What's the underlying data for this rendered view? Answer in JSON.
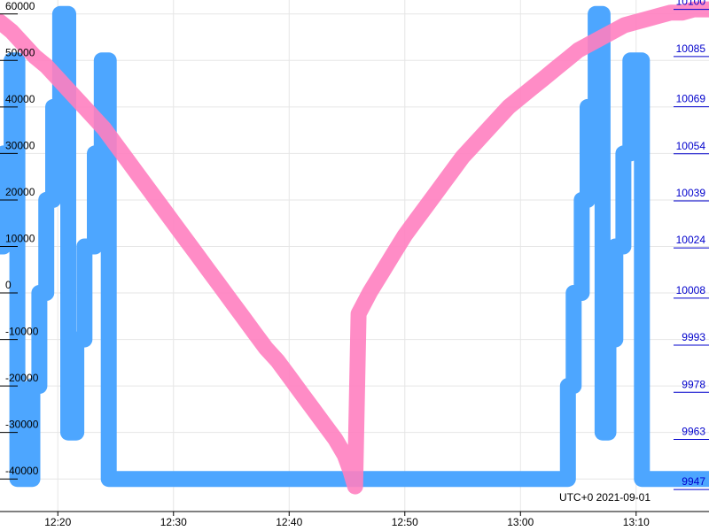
{
  "chart_data": {
    "type": "line",
    "caption": "UTC+0 2021-09-01",
    "x_axis": {
      "ticks": [
        "12:20",
        "12:30",
        "12:40",
        "12:50",
        "13:00",
        "13:10"
      ],
      "tick_minutes": [
        20,
        30,
        40,
        50,
        60,
        70
      ],
      "range_minutes": [
        15.0,
        76.3
      ]
    },
    "y_left": {
      "ticks": [
        "60000",
        "50000",
        "40000",
        "30000",
        "20000",
        "10000",
        "0",
        "-10000",
        "-20000",
        "-30000",
        "-40000"
      ],
      "tick_values": [
        60000,
        50000,
        40000,
        30000,
        20000,
        10000,
        0,
        -10000,
        -20000,
        -30000,
        -40000
      ],
      "range": [
        -47000,
        63000
      ]
    },
    "y_right": {
      "ticks": [
        "10100",
        "10085",
        "10069",
        "10054",
        "10039",
        "10024",
        "10008",
        "9993",
        "9978",
        "9963",
        "9947"
      ],
      "tick_values": [
        10100,
        10085,
        10069,
        10054,
        10039,
        10024,
        10008,
        9993,
        9978,
        9963,
        9947
      ],
      "range": [
        9940,
        10103
      ]
    },
    "grid": true,
    "series": [
      {
        "axis": "left",
        "color": "#4da6ff",
        "step": true,
        "x": [
          15.0,
          15.3,
          16.0,
          16.5,
          17.8,
          18.4,
          19.0,
          19.6,
          20.2,
          20.9,
          21.6,
          22.3,
          23.2,
          23.8,
          24.4,
          25.3,
          26.0,
          26.5,
          27.8,
          28.3,
          30.0,
          40.0,
          50.0,
          60.0,
          64.1,
          64.6,
          65.3,
          65.8,
          66.5,
          67.1,
          67.6,
          68.2,
          68.9,
          69.5,
          70.5,
          71.5,
          72.1,
          72.6,
          73.8,
          74.4,
          75.0,
          75.6,
          76.3
        ],
        "y": [
          10000,
          30000,
          50000,
          -40000,
          -20000,
          0,
          20000,
          40000,
          60000,
          -30000,
          -10000,
          10000,
          30000,
          50000,
          -40000,
          -40000,
          -40000,
          -40000,
          -40000,
          -40000,
          -40000,
          -40000,
          -40000,
          -40000,
          -20000,
          0,
          20000,
          40000,
          60000,
          -30000,
          -10000,
          10000,
          30000,
          50000,
          -40000,
          -40000,
          -40000,
          -40000,
          -40000,
          -40000,
          -40000,
          -40000,
          -40000
        ]
      },
      {
        "axis": "right",
        "color": "#ff7fc0",
        "step": false,
        "x": [
          15.0,
          16.0,
          17.0,
          18.0,
          19.0,
          20.0,
          21.0,
          22.0,
          23.0,
          24.0,
          25.0,
          26.0,
          27.0,
          28.0,
          29.0,
          30.0,
          31.0,
          32.0,
          33.0,
          34.0,
          35.0,
          36.0,
          37.0,
          38.0,
          39.0,
          40.0,
          41.0,
          42.0,
          43.0,
          44.0,
          44.8,
          45.3,
          45.7,
          46.0,
          47.0,
          48.0,
          49.0,
          50.0,
          51.0,
          52.0,
          53.0,
          54.0,
          55.0,
          56.0,
          57.0,
          58.0,
          59.0,
          60.0,
          61.0,
          62.0,
          63.0,
          64.0,
          65.0,
          66.0,
          67.0,
          68.0,
          69.0,
          70.0,
          71.0,
          72.0,
          73.0,
          74.0,
          75.0,
          76.3
        ],
        "y": [
          10096,
          10093,
          10089,
          10085,
          10082,
          10078,
          10074,
          10070,
          10066,
          10062,
          10057,
          10052,
          10047,
          10042,
          10037,
          10032,
          10027,
          10022,
          10017,
          10012,
          10007,
          10002,
          9997,
          9992,
          9988,
          9983,
          9978,
          9973,
          9968,
          9963,
          9958,
          9953,
          9948,
          10003,
          10010,
          10016,
          10022,
          10028,
          10033,
          10038,
          10043,
          10048,
          10053,
          10057,
          10061,
          10065,
          10069,
          10072,
          10075,
          10078,
          10081,
          10084,
          10087,
          10089,
          10091,
          10093,
          10095,
          10096,
          10097,
          10098,
          10099,
          10099,
          10100,
          10100
        ]
      }
    ]
  }
}
